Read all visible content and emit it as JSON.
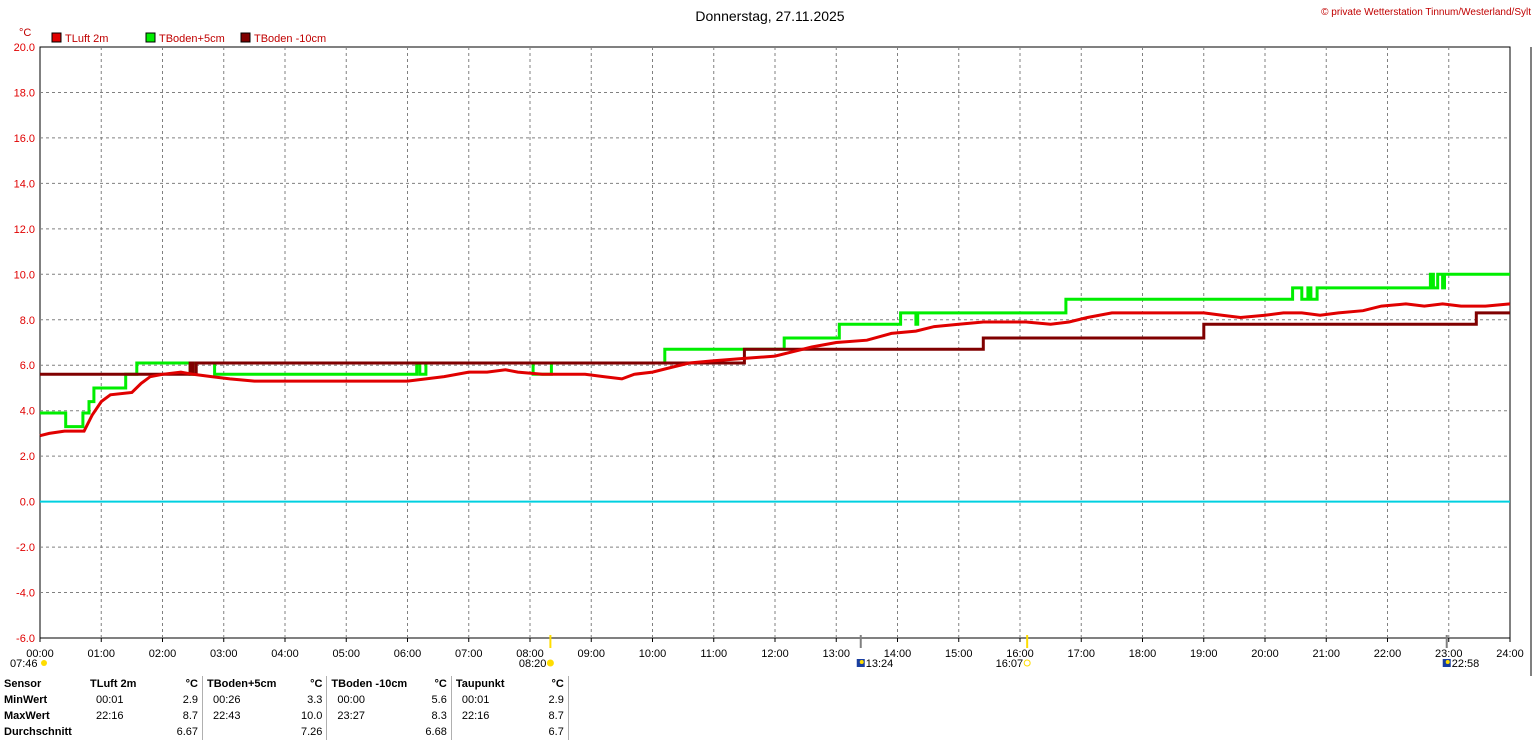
{
  "header": {
    "title": "Donnerstag, 27.11.2025",
    "copyright": "© private Wetterstation Tinnum/Westerland/Sylt",
    "unit": "°C"
  },
  "colors": {
    "tluft": "#e00000",
    "tboden5": "#00ee00",
    "tboden10": "#800000",
    "zero_line": "#00d0e0",
    "grid": "#808080",
    "sun": "#ffdd00",
    "moon": "#1a3fa0"
  },
  "legend": [
    {
      "name": "TLuft 2m",
      "color": "#e00000"
    },
    {
      "name": "TBoden+5cm",
      "color": "#00ee00"
    },
    {
      "name": "TBoden -10cm",
      "color": "#800000"
    }
  ],
  "chart_data": {
    "type": "line",
    "xlabel": "",
    "ylabel": "°C",
    "xlim": [
      0,
      24
    ],
    "ylim": [
      -6,
      20
    ],
    "y_ticks": [
      -6,
      -4,
      -2,
      0,
      2,
      4,
      6,
      8,
      10,
      12,
      14,
      16,
      18,
      20
    ],
    "y_tick_labels": [
      "-6.0",
      "-4.0",
      "-2.0",
      "0.0",
      "2.0",
      "4.0",
      "6.0",
      "8.0",
      "10.0",
      "12.0",
      "14.0",
      "16.0",
      "18.0",
      "20.0"
    ],
    "x_tick_labels": [
      "00:00",
      "01:00",
      "02:00",
      "03:00",
      "04:00",
      "05:00",
      "06:00",
      "07:00",
      "08:00",
      "09:00",
      "10:00",
      "11:00",
      "12:00",
      "13:00",
      "14:00",
      "15:00",
      "16:00",
      "17:00",
      "18:00",
      "19:00",
      "20:00",
      "21:00",
      "22:00",
      "23:00",
      "24:00"
    ],
    "grid": true,
    "legend_position": "top-left",
    "series": [
      {
        "name": "TLuft 2m",
        "color": "#e00000",
        "points": [
          [
            0.0,
            2.9
          ],
          [
            0.15,
            3.0
          ],
          [
            0.4,
            3.1
          ],
          [
            0.72,
            3.1
          ],
          [
            0.85,
            3.8
          ],
          [
            1.0,
            4.4
          ],
          [
            1.15,
            4.7
          ],
          [
            1.5,
            4.8
          ],
          [
            1.65,
            5.2
          ],
          [
            1.8,
            5.5
          ],
          [
            2.0,
            5.6
          ],
          [
            2.3,
            5.7
          ],
          [
            2.5,
            5.6
          ],
          [
            2.8,
            5.5
          ],
          [
            3.1,
            5.4
          ],
          [
            3.5,
            5.3
          ],
          [
            4.0,
            5.3
          ],
          [
            4.5,
            5.3
          ],
          [
            5.0,
            5.3
          ],
          [
            5.5,
            5.3
          ],
          [
            6.0,
            5.3
          ],
          [
            6.3,
            5.4
          ],
          [
            6.6,
            5.5
          ],
          [
            7.0,
            5.7
          ],
          [
            7.3,
            5.7
          ],
          [
            7.6,
            5.8
          ],
          [
            7.8,
            5.7
          ],
          [
            8.2,
            5.6
          ],
          [
            8.6,
            5.6
          ],
          [
            8.9,
            5.6
          ],
          [
            9.2,
            5.5
          ],
          [
            9.5,
            5.4
          ],
          [
            9.7,
            5.6
          ],
          [
            10.0,
            5.7
          ],
          [
            10.3,
            5.9
          ],
          [
            10.6,
            6.1
          ],
          [
            11.0,
            6.2
          ],
          [
            11.5,
            6.3
          ],
          [
            12.0,
            6.4
          ],
          [
            12.3,
            6.6
          ],
          [
            12.6,
            6.8
          ],
          [
            13.0,
            7.0
          ],
          [
            13.5,
            7.1
          ],
          [
            13.9,
            7.4
          ],
          [
            14.3,
            7.5
          ],
          [
            14.6,
            7.7
          ],
          [
            15.0,
            7.8
          ],
          [
            15.4,
            7.9
          ],
          [
            15.8,
            7.9
          ],
          [
            16.1,
            7.9
          ],
          [
            16.5,
            7.8
          ],
          [
            16.8,
            7.9
          ],
          [
            17.1,
            8.1
          ],
          [
            17.5,
            8.3
          ],
          [
            17.9,
            8.3
          ],
          [
            18.3,
            8.3
          ],
          [
            18.6,
            8.3
          ],
          [
            19.0,
            8.3
          ],
          [
            19.3,
            8.2
          ],
          [
            19.6,
            8.1
          ],
          [
            20.0,
            8.2
          ],
          [
            20.3,
            8.3
          ],
          [
            20.6,
            8.3
          ],
          [
            20.9,
            8.2
          ],
          [
            21.2,
            8.3
          ],
          [
            21.6,
            8.4
          ],
          [
            21.9,
            8.6
          ],
          [
            22.3,
            8.7
          ],
          [
            22.6,
            8.6
          ],
          [
            22.9,
            8.7
          ],
          [
            23.2,
            8.6
          ],
          [
            23.6,
            8.6
          ],
          [
            24.0,
            8.7
          ]
        ]
      },
      {
        "name": "TBoden+5cm",
        "color": "#00ee00",
        "points": [
          [
            0.0,
            3.9
          ],
          [
            0.42,
            3.9
          ],
          [
            0.42,
            3.3
          ],
          [
            0.7,
            3.3
          ],
          [
            0.7,
            3.9
          ],
          [
            0.8,
            3.9
          ],
          [
            0.8,
            4.4
          ],
          [
            0.88,
            4.4
          ],
          [
            0.88,
            5.0
          ],
          [
            1.4,
            5.0
          ],
          [
            1.4,
            5.6
          ],
          [
            1.58,
            5.6
          ],
          [
            1.58,
            6.1
          ],
          [
            2.45,
            6.1
          ],
          [
            2.45,
            5.6
          ],
          [
            2.5,
            5.6
          ],
          [
            2.5,
            6.1
          ],
          [
            2.85,
            6.1
          ],
          [
            2.85,
            5.6
          ],
          [
            6.15,
            5.6
          ],
          [
            6.15,
            6.1
          ],
          [
            6.2,
            6.1
          ],
          [
            6.2,
            5.6
          ],
          [
            6.3,
            5.6
          ],
          [
            6.3,
            6.1
          ],
          [
            8.05,
            6.1
          ],
          [
            8.05,
            5.6
          ],
          [
            8.35,
            5.6
          ],
          [
            8.35,
            6.1
          ],
          [
            10.2,
            6.1
          ],
          [
            10.2,
            6.7
          ],
          [
            12.15,
            6.7
          ],
          [
            12.15,
            7.2
          ],
          [
            13.05,
            7.2
          ],
          [
            13.05,
            7.8
          ],
          [
            14.05,
            7.8
          ],
          [
            14.05,
            8.3
          ],
          [
            14.3,
            8.3
          ],
          [
            14.3,
            7.8
          ],
          [
            14.33,
            7.8
          ],
          [
            14.33,
            8.3
          ],
          [
            16.75,
            8.3
          ],
          [
            16.75,
            8.9
          ],
          [
            20.45,
            8.9
          ],
          [
            20.45,
            9.4
          ],
          [
            20.6,
            9.4
          ],
          [
            20.6,
            8.9
          ],
          [
            20.7,
            8.9
          ],
          [
            20.7,
            9.4
          ],
          [
            20.75,
            9.4
          ],
          [
            20.75,
            8.9
          ],
          [
            20.85,
            8.9
          ],
          [
            20.85,
            9.4
          ],
          [
            22.7,
            9.4
          ],
          [
            22.7,
            10.0
          ],
          [
            22.75,
            10.0
          ],
          [
            22.75,
            9.4
          ],
          [
            22.82,
            9.4
          ],
          [
            22.82,
            10.0
          ],
          [
            22.9,
            10.0
          ],
          [
            22.9,
            9.4
          ],
          [
            22.93,
            9.4
          ],
          [
            22.93,
            10.0
          ],
          [
            24.0,
            10.0
          ]
        ]
      },
      {
        "name": "TBoden -10cm",
        "color": "#800000",
        "points": [
          [
            0.0,
            5.6
          ],
          [
            2.45,
            5.6
          ],
          [
            2.45,
            6.1
          ],
          [
            2.5,
            6.1
          ],
          [
            2.5,
            5.6
          ],
          [
            2.55,
            5.6
          ],
          [
            2.55,
            6.1
          ],
          [
            11.5,
            6.1
          ],
          [
            11.5,
            6.7
          ],
          [
            15.4,
            6.7
          ],
          [
            15.4,
            7.2
          ],
          [
            19.0,
            7.2
          ],
          [
            19.0,
            7.8
          ],
          [
            23.45,
            7.8
          ],
          [
            23.45,
            8.3
          ],
          [
            24.0,
            8.3
          ]
        ]
      },
      {
        "name": "",
        "color": "#00d0e0",
        "points": [
          [
            0.0,
            0.0
          ],
          [
            24.0,
            0.0
          ]
        ]
      }
    ],
    "markers": [
      {
        "type": "sunrise",
        "time": 8.333,
        "label": "08:20"
      },
      {
        "type": "sunset",
        "time": 16.117,
        "label": "16:07"
      },
      {
        "type": "moonrise",
        "time": 13.4,
        "label": "13:24"
      },
      {
        "type": "moonset",
        "time": 22.967,
        "label": "22:58"
      }
    ],
    "left_label": "07:46"
  },
  "stats": {
    "headers": [
      "Sensor",
      "TLuft 2m",
      "°C",
      "TBoden+5cm",
      "°C",
      "TBoden -10cm",
      "°C",
      "Taupunkt",
      "°C"
    ],
    "rows": [
      {
        "label": "MinWert",
        "cells": [
          "00:01",
          "2.9",
          "00:26",
          "3.3",
          "00:00",
          "5.6",
          "00:01",
          "2.9"
        ]
      },
      {
        "label": "MaxWert",
        "cells": [
          "22:16",
          "8.7",
          "22:43",
          "10.0",
          "23:27",
          "8.3",
          "22:16",
          "8.7"
        ]
      },
      {
        "label": "Durchschnitt",
        "cells": [
          "",
          "6.67",
          "",
          "7.26",
          "",
          "6.68",
          "",
          "6.7"
        ]
      }
    ]
  }
}
